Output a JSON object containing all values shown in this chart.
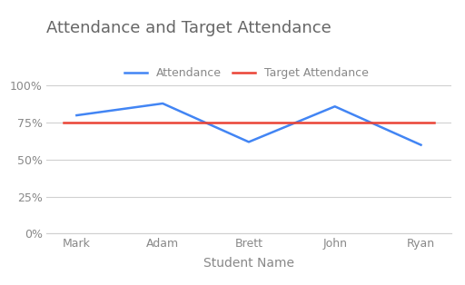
{
  "title": "Attendance and Target Attendance",
  "xlabel": "Student Name",
  "students": [
    "Mark",
    "Adam",
    "Brett",
    "John",
    "Ryan"
  ],
  "attendance": [
    0.8,
    0.88,
    0.62,
    0.86,
    0.6
  ],
  "target": 0.75,
  "attendance_color": "#4285F4",
  "target_color": "#EA4335",
  "attendance_label": "Attendance",
  "target_label": "Target Attendance",
  "ylim": [
    0.0,
    1.04
  ],
  "yticks": [
    0.0,
    0.25,
    0.5,
    0.75,
    1.0
  ],
  "ytick_labels": [
    "0%",
    "25%",
    "50%",
    "75%",
    "100%"
  ],
  "title_color": "#666666",
  "tick_color": "#888888",
  "grid_color": "#d0d0d0",
  "background_color": "#ffffff",
  "title_fontsize": 13,
  "xlabel_fontsize": 10,
  "tick_fontsize": 9,
  "legend_fontsize": 9,
  "line_width": 1.8
}
